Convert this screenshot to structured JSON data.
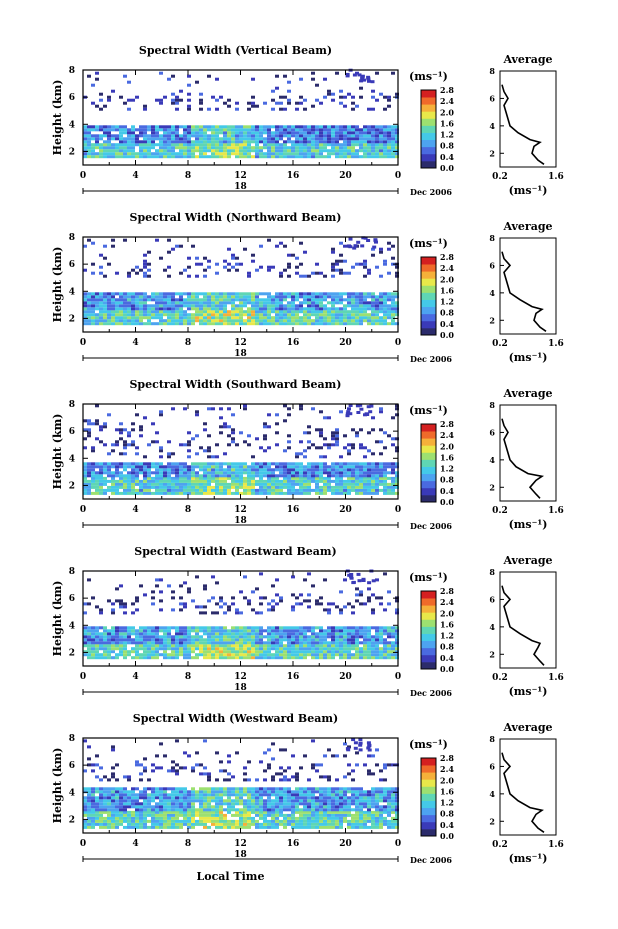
{
  "figure": {
    "x_axis_label": "Local Time",
    "time_ticks": [
      "0",
      "4",
      "8",
      "12",
      "16",
      "20",
      "0"
    ],
    "date_day": "18",
    "date_label": "Dec 2006",
    "y_label": "Height (km)",
    "height_ticks": [
      "2",
      "4",
      "6",
      "8"
    ],
    "colorbar_unit": "(ms⁻¹)",
    "colorbar_ticks": [
      "0.0",
      "0.4",
      "0.8",
      "1.2",
      "1.6",
      "2.0",
      "2.4",
      "2.8"
    ],
    "profile_title": "Average",
    "profile_unit": "(ms⁻¹)",
    "profile_x_ticks": [
      "0.2",
      "1.6"
    ],
    "colors": {
      "scale": [
        "#2b2b6b",
        "#3a3ab8",
        "#4a6ae0",
        "#4da3f0",
        "#44c9e8",
        "#5fd6b4",
        "#9de070",
        "#e8e84a",
        "#f5b03a",
        "#ef6a2a",
        "#d42020"
      ]
    }
  },
  "chart_data": [
    {
      "type": "heatmap",
      "title": "Spectral Width (Vertical Beam)",
      "xlabel": "Local Time",
      "ylabel": "Height (km)",
      "xlim": [
        0,
        24
      ],
      "ylim": [
        1,
        8
      ],
      "colorbar": {
        "unit": "ms-1",
        "range": [
          0.0,
          2.8
        ]
      },
      "layers": [
        {
          "from_h": 1.5,
          "to_h": 2.6,
          "mean_ms": 1.2
        },
        {
          "from_h": 2.6,
          "to_h": 3.8,
          "mean_ms": 0.8
        },
        {
          "from_h": 5.0,
          "to_h": 7.8,
          "mean_ms": 0.3,
          "sparse": true
        }
      ],
      "profile": {
        "title": "Average",
        "height_km": [
          1.2,
          1.5,
          2.0,
          2.5,
          2.8,
          3.0,
          3.5,
          4.0,
          4.5,
          5.0,
          5.5,
          6.0,
          6.5,
          7.0
        ],
        "width_ms": [
          1.3,
          1.15,
          1.0,
          1.05,
          1.2,
          0.95,
          0.65,
          0.45,
          0.4,
          0.35,
          0.3,
          0.4,
          0.3,
          0.25
        ]
      }
    },
    {
      "type": "heatmap",
      "title": "Spectral Width (Northward Beam)",
      "xlabel": "Local Time",
      "ylabel": "Height (km)",
      "xlim": [
        0,
        24
      ],
      "ylim": [
        1,
        8
      ],
      "colorbar": {
        "unit": "ms-1",
        "range": [
          0.0,
          2.8
        ]
      },
      "layers": [
        {
          "from_h": 1.5,
          "to_h": 2.6,
          "mean_ms": 1.3
        },
        {
          "from_h": 2.6,
          "to_h": 3.8,
          "mean_ms": 0.9
        },
        {
          "from_h": 5.0,
          "to_h": 7.8,
          "mean_ms": 0.3,
          "sparse": true
        }
      ],
      "profile": {
        "title": "Average",
        "height_km": [
          1.2,
          1.5,
          2.0,
          2.5,
          2.8,
          3.0,
          3.5,
          4.0,
          4.5,
          5.0,
          5.5,
          6.0,
          6.5,
          7.0
        ],
        "width_ms": [
          1.35,
          1.2,
          1.05,
          1.1,
          1.25,
          1.0,
          0.7,
          0.45,
          0.4,
          0.35,
          0.3,
          0.45,
          0.3,
          0.25
        ]
      }
    },
    {
      "type": "heatmap",
      "title": "Spectral Width (Southward Beam)",
      "xlabel": "Local Time",
      "ylabel": "Height (km)",
      "xlim": [
        0,
        24
      ],
      "ylim": [
        1,
        8
      ],
      "colorbar": {
        "unit": "ms-1",
        "range": [
          0.0,
          2.8
        ]
      },
      "layers": [
        {
          "from_h": 1.3,
          "to_h": 2.6,
          "mean_ms": 1.2
        },
        {
          "from_h": 2.6,
          "to_h": 3.6,
          "mean_ms": 0.8
        },
        {
          "from_h": 4.0,
          "to_h": 7.8,
          "mean_ms": 0.3,
          "sparse": true
        }
      ],
      "profile": {
        "title": "Average",
        "height_km": [
          1.2,
          1.5,
          2.0,
          2.5,
          2.8,
          3.0,
          3.5,
          4.0,
          4.5,
          5.0,
          5.5,
          6.0,
          6.5,
          7.0
        ],
        "width_ms": [
          1.2,
          1.1,
          0.95,
          1.1,
          1.25,
          0.9,
          0.6,
          0.45,
          0.4,
          0.35,
          0.3,
          0.4,
          0.3,
          0.25
        ]
      }
    },
    {
      "type": "heatmap",
      "title": "Spectral Width (Eastward Beam)",
      "xlabel": "Local Time",
      "ylabel": "Height (km)",
      "xlim": [
        0,
        24
      ],
      "ylim": [
        1,
        8
      ],
      "colorbar": {
        "unit": "ms-1",
        "range": [
          0.0,
          2.8
        ]
      },
      "layers": [
        {
          "from_h": 1.5,
          "to_h": 2.6,
          "mean_ms": 1.3
        },
        {
          "from_h": 2.6,
          "to_h": 3.9,
          "mean_ms": 0.9
        },
        {
          "from_h": 4.8,
          "to_h": 7.8,
          "mean_ms": 0.3,
          "sparse": true
        }
      ],
      "profile": {
        "title": "Average",
        "height_km": [
          1.2,
          1.5,
          2.0,
          2.5,
          2.8,
          3.0,
          3.5,
          4.0,
          4.5,
          5.0,
          5.5,
          6.0,
          6.5,
          7.0
        ],
        "width_ms": [
          1.3,
          1.2,
          1.05,
          1.15,
          1.2,
          1.0,
          0.7,
          0.45,
          0.4,
          0.35,
          0.3,
          0.45,
          0.3,
          0.25
        ]
      }
    },
    {
      "type": "heatmap",
      "title": "Spectral Width (Westward Beam)",
      "xlabel": "Local Time",
      "ylabel": "Height (km)",
      "xlim": [
        0,
        24
      ],
      "ylim": [
        1,
        8
      ],
      "colorbar": {
        "unit": "ms-1",
        "range": [
          0.0,
          2.8
        ]
      },
      "layers": [
        {
          "from_h": 1.3,
          "to_h": 2.6,
          "mean_ms": 1.3
        },
        {
          "from_h": 2.6,
          "to_h": 4.2,
          "mean_ms": 0.9
        },
        {
          "from_h": 4.8,
          "to_h": 7.8,
          "mean_ms": 0.3,
          "sparse": true
        }
      ],
      "profile": {
        "title": "Average",
        "height_km": [
          1.2,
          1.5,
          2.0,
          2.5,
          2.8,
          3.0,
          3.5,
          4.0,
          4.5,
          5.0,
          5.5,
          6.0,
          6.5,
          7.0
        ],
        "width_ms": [
          1.3,
          1.15,
          1.0,
          1.1,
          1.25,
          0.95,
          0.65,
          0.45,
          0.4,
          0.35,
          0.3,
          0.45,
          0.3,
          0.25
        ]
      }
    }
  ]
}
